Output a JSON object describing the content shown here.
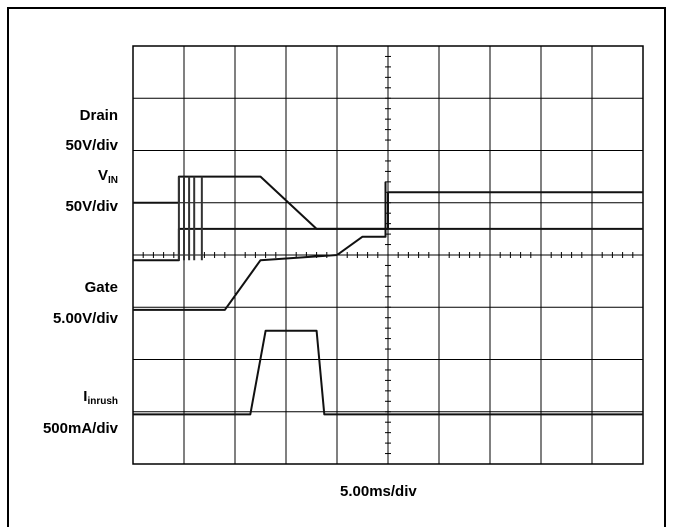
{
  "chart_data": {
    "type": "line",
    "title": "",
    "grid": true,
    "x_divisions": 10,
    "y_divisions": 8,
    "xlabel": "5.00ms/div",
    "channels": [
      {
        "name": "Drain",
        "name_sub": "",
        "scale": "50V/div",
        "trace": [
          [
            0,
            5.0
          ],
          [
            0.9,
            5.0
          ],
          [
            0.9,
            5.5
          ],
          [
            1.5,
            5.5
          ],
          [
            2.5,
            5.5
          ],
          [
            3.6,
            4.5
          ],
          [
            10,
            4.5
          ]
        ]
      },
      {
        "name": "V",
        "name_sub": "IN",
        "scale": "50V/div",
        "trace": [
          [
            0,
            3.9
          ],
          [
            0.9,
            3.9
          ],
          [
            0.9,
            4.5
          ],
          [
            5.0,
            4.5
          ],
          [
            5.0,
            5.2
          ],
          [
            10,
            5.2
          ]
        ]
      },
      {
        "name": "Gate",
        "name_sub": "",
        "scale": "5.00V/div",
        "trace": [
          [
            0,
            2.95
          ],
          [
            1.8,
            2.95
          ],
          [
            2.5,
            3.9
          ],
          [
            4.0,
            4.0
          ],
          [
            4.5,
            4.35
          ],
          [
            4.95,
            4.35
          ],
          [
            4.95,
            5.4
          ]
        ]
      },
      {
        "name": "I",
        "name_sub": "inrush",
        "scale": "500mA/div",
        "trace": [
          [
            0,
            0.95
          ],
          [
            2.3,
            0.95
          ],
          [
            2.6,
            2.55
          ],
          [
            3.6,
            2.55
          ],
          [
            3.75,
            0.95
          ],
          [
            10,
            0.95
          ]
        ]
      }
    ]
  }
}
